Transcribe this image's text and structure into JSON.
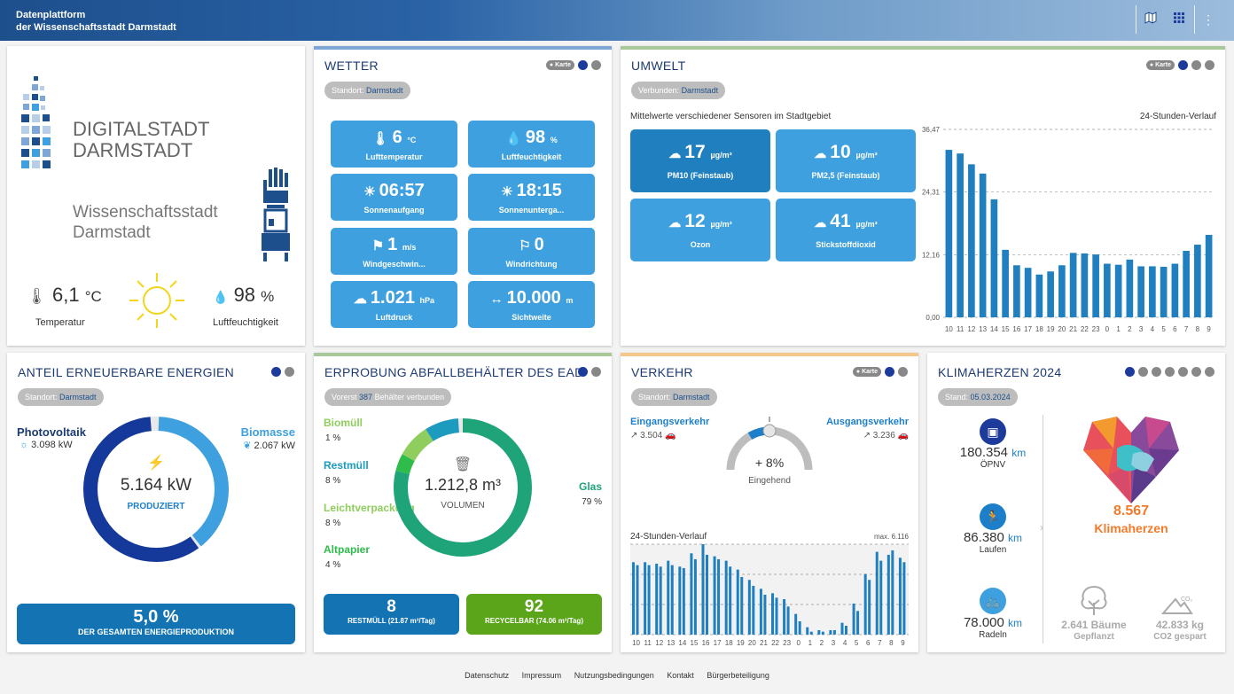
{
  "header": {
    "title_line1": "Datenplattform",
    "title_line2": "der Wissenschaftsstadt Darmstadt",
    "icons": [
      "map-icon",
      "grid-icon",
      "more-vertical-icon"
    ]
  },
  "logo_card": {
    "brand1": "DIGITALSTADT",
    "brand2": "DARMSTADT",
    "city1": "Wissenschaftsstadt",
    "city2": "Darmstadt",
    "temp_value": "6,1",
    "temp_unit": "°C",
    "temp_label": "Temperatur",
    "humidity_value": "98",
    "humidity_unit": "%",
    "humidity_label": "Luftfeuchtigkeit"
  },
  "wetter": {
    "title": "WETTER",
    "location_prefix": "Standort:",
    "location": "Darmstadt",
    "karte": "Karte",
    "tiles": [
      {
        "value": "6",
        "unit": "°C",
        "label": "Lufttemperatur",
        "icon": "thermometer-icon"
      },
      {
        "value": "98",
        "unit": "%",
        "label": "Luftfeuchtigkeit",
        "icon": "humidity-icon"
      },
      {
        "value": "06:57",
        "unit": "",
        "label": "Sonnenaufgang",
        "icon": "sunrise-icon"
      },
      {
        "value": "18:15",
        "unit": "",
        "label": "Sonnenunterga...",
        "icon": "sunset-icon"
      },
      {
        "value": "1",
        "unit": "m/s",
        "label": "Windgeschwin...",
        "icon": "wind-speed-icon"
      },
      {
        "value": "0",
        "unit": "",
        "label": "Windrichtung",
        "icon": "wind-direction-icon"
      },
      {
        "value": "1.021",
        "unit": "hPa",
        "label": "Luftdruck",
        "icon": "pressure-icon"
      },
      {
        "value": "10.000",
        "unit": "m",
        "label": "Sichtweite",
        "icon": "visibility-icon"
      }
    ]
  },
  "umwelt": {
    "title": "UMWELT",
    "connected_prefix": "Verbunden:",
    "connected": "Darmstadt",
    "karte": "Karte",
    "subtitle": "Mittelwerte verschiedener Sensoren im Stadtgebiet",
    "chart_title": "24-Stunden-Verlauf",
    "tiles": [
      {
        "value": "17",
        "unit": "µg/m³",
        "label": "PM10 (Feinstaub)",
        "icon": "pm10-icon",
        "badge": "PM10"
      },
      {
        "value": "10",
        "unit": "µg/m³",
        "label": "PM2,5 (Feinstaub)",
        "icon": "pm25-icon",
        "badge": "PM2.5"
      },
      {
        "value": "12",
        "unit": "µg/m³",
        "label": "Ozon",
        "icon": "ozone-icon",
        "badge": "O3"
      },
      {
        "value": "41",
        "unit": "µg/m³",
        "label": "Stickstoffdioxid",
        "icon": "no2-icon",
        "badge": "NO2"
      }
    ]
  },
  "energie": {
    "title": "ANTEIL ERNEUERBARE ENERGIEN",
    "location_prefix": "Standort:",
    "location": "Darmstadt",
    "pv_label": "Photovoltaik",
    "pv_value": "3.098 kW",
    "bio_label": "Biomasse",
    "bio_value": "2.067 kW",
    "center_value": "5.164 kW",
    "center_label": "PRODUZIERT",
    "share_value": "5,0 %",
    "share_label": "DER GESAMTEN ENERGIEPRODUKTION",
    "pv_fraction": 0.6,
    "bio_fraction": 0.4
  },
  "abfall": {
    "title": "ERPROBUNG ABFALLBEHÄLTER DES EAD",
    "badge_prefix": "Vorerst",
    "badge_count": "387",
    "badge_suffix": "Behälter verbunden",
    "items": [
      {
        "label": "Biomüll",
        "value": "1 %",
        "color": "#8fce5e"
      },
      {
        "label": "Restmüll",
        "value": "8 %",
        "color": "#1d7fc9"
      },
      {
        "label": "Leichtverpackung",
        "value": "8 %",
        "color": "#8fce5e"
      },
      {
        "label": "Altpapier",
        "value": "4 %",
        "color": "#2ebd4a"
      }
    ],
    "glas_label": "Glas",
    "glas_value": "79 %",
    "center_value": "1.212,8 m³",
    "center_label": "VOLUMEN",
    "rest_count": "8",
    "rest_label": "RESTMÜLL (21.87 m³/Tag)",
    "recycle_count": "92",
    "recycle_label": "RECYCELBAR (74.06 m³/Tag)"
  },
  "verkehr": {
    "title": "VERKEHR",
    "location_prefix": "Standort:",
    "location": "Darmstadt",
    "karte": "Karte",
    "in_label": "Eingangsverkehr",
    "in_value": "3.504",
    "out_label": "Ausgangsverkehr",
    "out_value": "3.236",
    "gauge_value": "+ 8%",
    "gauge_label": "Eingehend",
    "chart_title": "24-Stunden-Verlauf",
    "chart_max": "max. 6.116"
  },
  "klima": {
    "title": "KLIMAHERZEN 2024",
    "stand_prefix": "Stand:",
    "stand": "05.03.2024",
    "oepnv_value": "180.354",
    "oepnv_unit": "km",
    "oepnv_label": "ÖPNV",
    "laufen_value": "86.380",
    "laufen_unit": "km",
    "laufen_label": "Laufen",
    "radeln_value": "78.000",
    "radeln_unit": "km",
    "radeln_label": "Radeln",
    "hearts_value": "8.567",
    "hearts_label": "Klimaherzen",
    "trees_value": "2.641 Bäume",
    "trees_label": "Gepflanzt",
    "co2_value": "42.833 kg",
    "co2_label": "CO2 gespart",
    "co2_icon_text": "CO₂"
  },
  "footer": {
    "links": [
      "Datenschutz",
      "Impressum",
      "Nutzungsbedingungen",
      "Kontakt",
      "Bürgerbeteiligung"
    ]
  },
  "chart_data": [
    {
      "type": "bar",
      "title": "24-Stunden-Verlauf",
      "categories": [
        "10",
        "11",
        "12",
        "13",
        "14",
        "15",
        "16",
        "17",
        "18",
        "19",
        "20",
        "21",
        "22",
        "23",
        "0",
        "1",
        "2",
        "3",
        "4",
        "5",
        "6",
        "7",
        "8",
        "9"
      ],
      "values": [
        32.5,
        31.8,
        29.7,
        27.9,
        22.9,
        13.1,
        10.1,
        9.6,
        8.3,
        8.9,
        10.1,
        12.5,
        12.4,
        12.2,
        10.4,
        10.2,
        11.2,
        9.9,
        9.9,
        9.8,
        10.4,
        12.9,
        14.1,
        16.0
      ],
      "yticks": [
        "0,00",
        "12,16",
        "24,31",
        "36,47"
      ],
      "ylim": [
        0,
        36.47
      ]
    },
    {
      "type": "bar",
      "title": "24-Stunden-Verlauf",
      "categories": [
        "10",
        "11",
        "12",
        "13",
        "14",
        "15",
        "16",
        "17",
        "18",
        "19",
        "20",
        "21",
        "22",
        "23",
        "0",
        "1",
        "2",
        "3",
        "4",
        "5",
        "6",
        "7",
        "8",
        "9"
      ],
      "series": [
        {
          "values": [
            4900,
            4900,
            4800,
            5000,
            4600,
            5500,
            6116,
            5300,
            5000,
            4400,
            3700,
            3100,
            2800,
            2400,
            1400,
            500,
            300,
            300,
            800,
            2100,
            4100,
            5600,
            5400,
            5200
          ]
        },
        {
          "values": [
            4700,
            4700,
            4600,
            4700,
            4500,
            5100,
            5400,
            5100,
            4600,
            3900,
            3300,
            2700,
            2500,
            1900,
            900,
            200,
            200,
            300,
            600,
            1600,
            3700,
            5000,
            5700,
            4900
          ]
        }
      ],
      "annotation": "max. 6.116",
      "ylim": [
        0,
        6116
      ]
    }
  ]
}
